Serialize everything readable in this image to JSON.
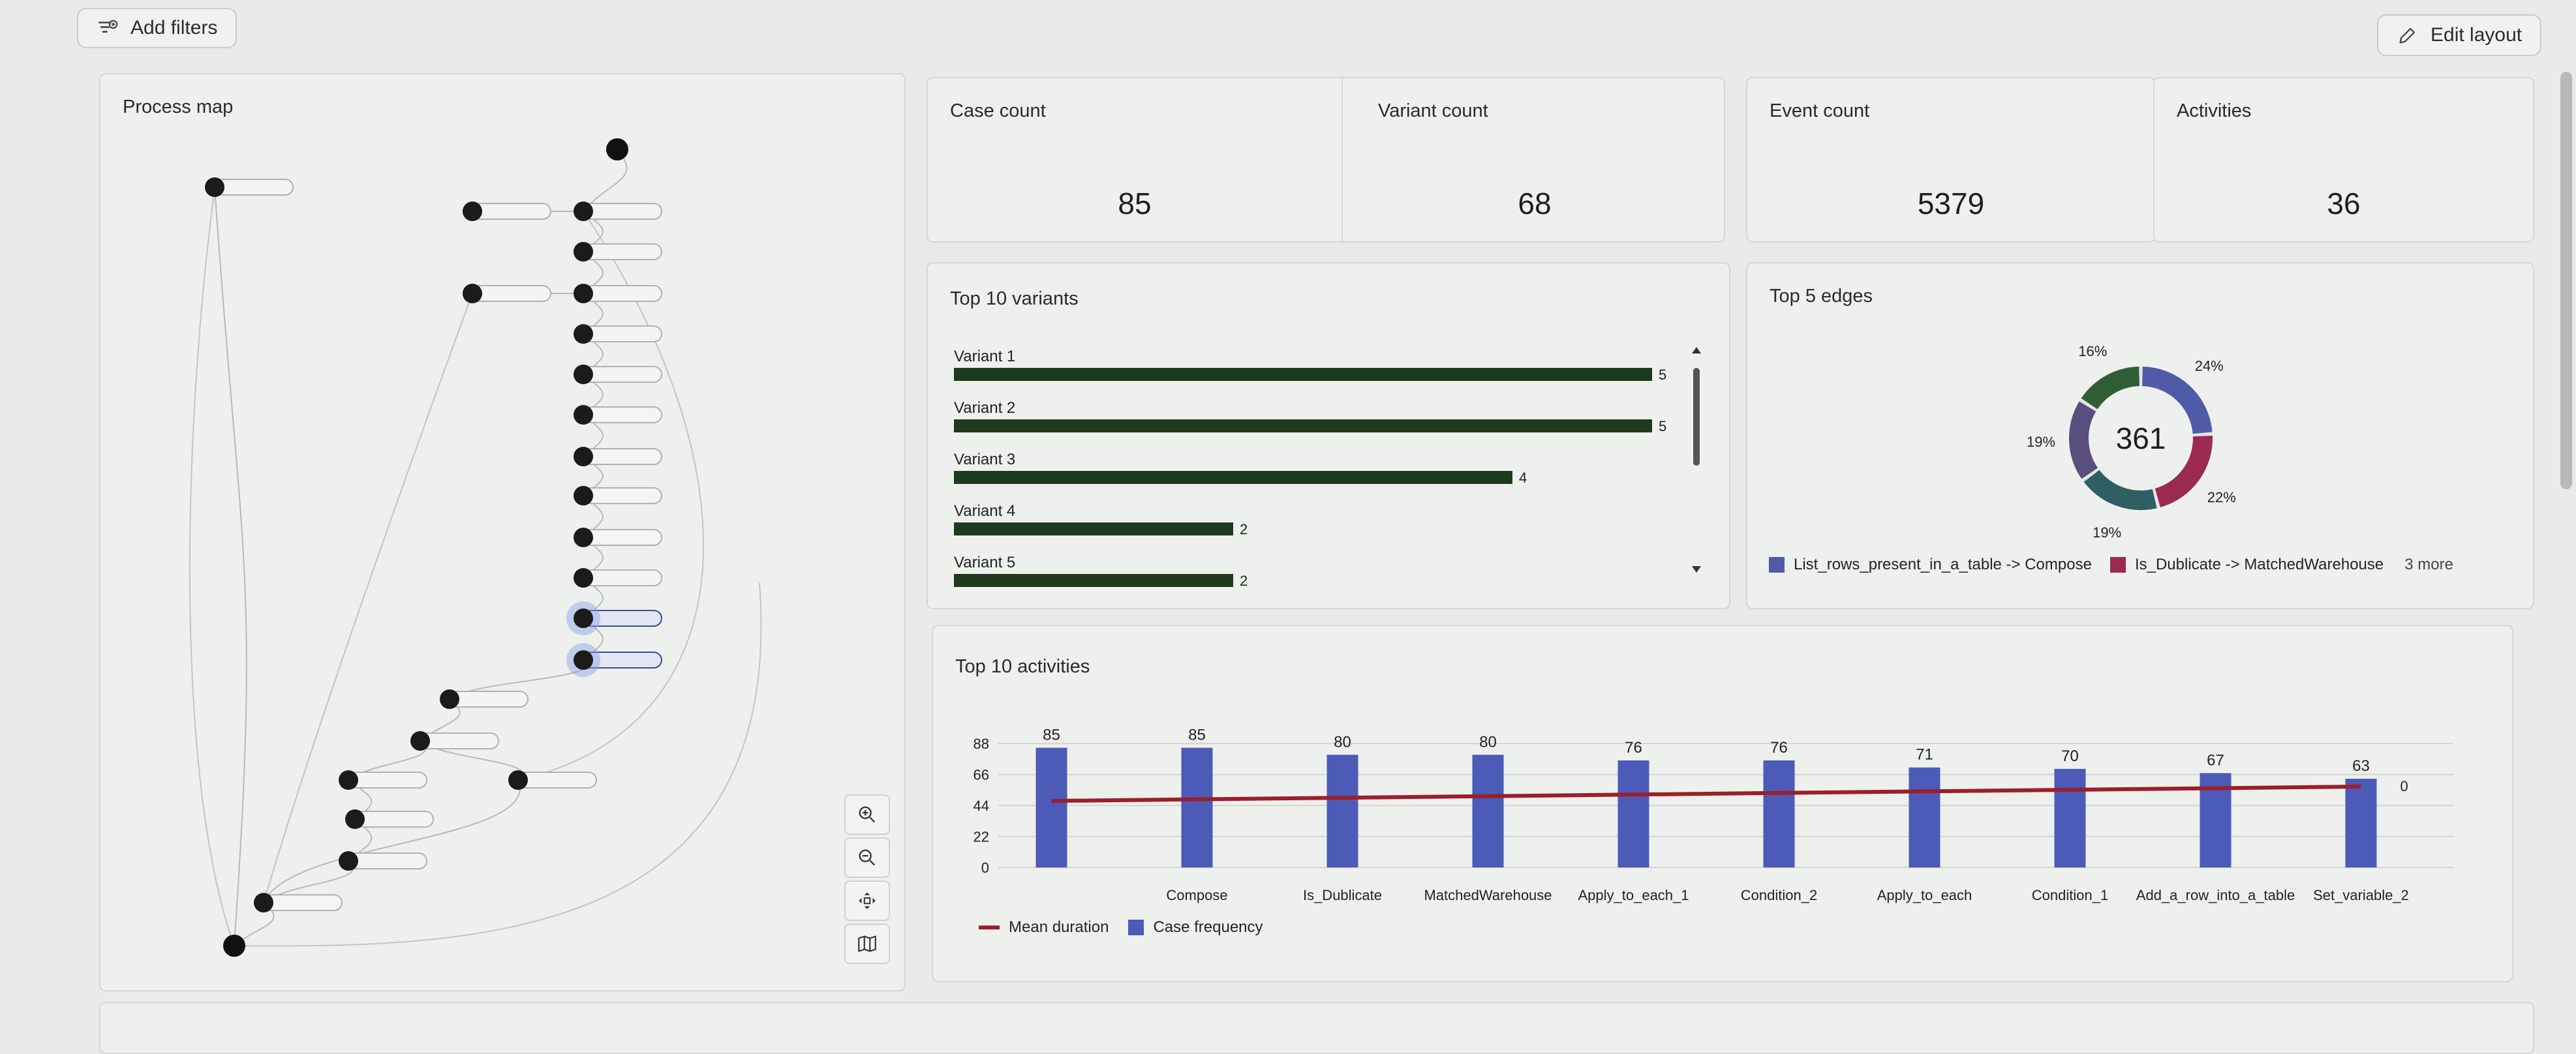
{
  "toolbar": {
    "add_filters_label": "Add filters",
    "edit_layout_label": "Edit layout"
  },
  "process_map": {
    "title": "Process map"
  },
  "kpis": [
    {
      "label": "Case count",
      "value": "85"
    },
    {
      "label": "Variant count",
      "value": "68"
    },
    {
      "label": "Event count",
      "value": "5379"
    },
    {
      "label": "Activities",
      "value": "36"
    }
  ],
  "top_variants": {
    "title": "Top 10 variants",
    "bar_color": "#1e3a1e",
    "max": 5,
    "items": [
      {
        "label": "Variant 1",
        "value": 5
      },
      {
        "label": "Variant 2",
        "value": 5
      },
      {
        "label": "Variant 3",
        "value": 4
      },
      {
        "label": "Variant 4",
        "value": 2
      },
      {
        "label": "Variant 5",
        "value": 2
      }
    ]
  },
  "top_edges": {
    "title": "Top 5 edges",
    "total": "361",
    "segments": [
      {
        "pct": 24,
        "label": "24%",
        "color": "#4f5aa8"
      },
      {
        "pct": 22,
        "label": "22%",
        "color": "#9a2a52"
      },
      {
        "pct": 19,
        "label": "19%",
        "color": "#2f5f63"
      },
      {
        "pct": 19,
        "label": "19%",
        "color": "#5a4e7e"
      },
      {
        "pct": 16,
        "label": "16%",
        "color": "#2f5e34"
      }
    ],
    "legend": [
      {
        "label": "List_rows_present_in_a_table -> Compose",
        "color": "#4f5aa8"
      },
      {
        "label": "Is_Dublicate -> MatchedWarehouse",
        "color": "#9a2a52"
      }
    ],
    "more_label": "3 more"
  },
  "top_activities": {
    "title": "Top 10 activities",
    "legend_line": "Mean duration",
    "legend_bar": "Case frequency",
    "line_end_label": "0",
    "bar_color": "#4c5bb8",
    "line_color": "#9b1f2b"
  },
  "chart_data": {
    "type": "bar",
    "categories": [
      "",
      "Compose",
      "Is_Dublicate",
      "MatchedWarehouse",
      "Apply_to_each_1",
      "Condition_2",
      "Apply_to_each",
      "Condition_1",
      "Add_a_row_into_a_table",
      "Set_variable_2"
    ],
    "series": [
      {
        "name": "Case frequency",
        "values": [
          85,
          85,
          80,
          80,
          76,
          76,
          71,
          70,
          67,
          63
        ]
      }
    ],
    "y_ticks": [
      "88",
      "66",
      "44",
      "22",
      "0"
    ],
    "ylim": [
      0,
      88
    ],
    "grid": true,
    "legend": "bottom-left"
  }
}
